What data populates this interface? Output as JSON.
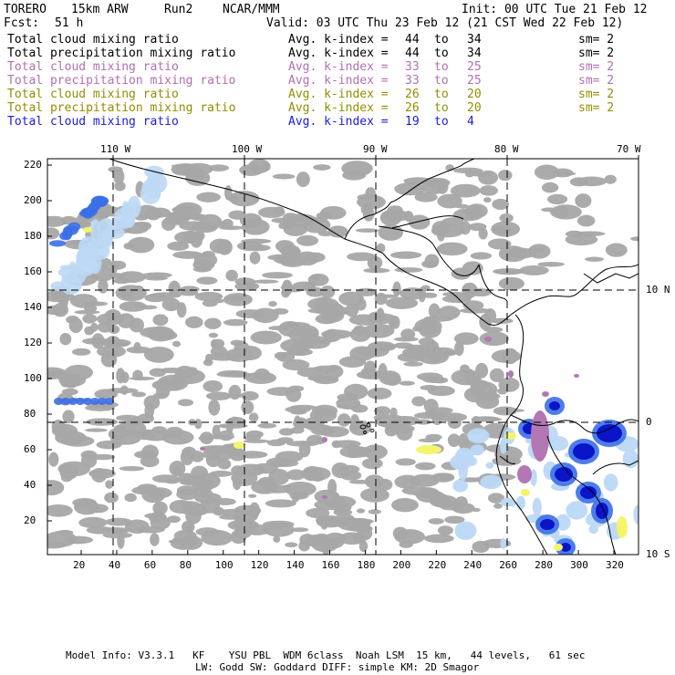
{
  "header": {
    "model": "TORERO",
    "resolution": "15km ARW",
    "run": "Run2",
    "org": "NCAR/MMM",
    "fcst_label": "Fcst:",
    "fcst_value": "51 h",
    "init": "Init: 00 UTC Tue 21 Feb 12",
    "valid": "Valid: 03 UTC Thu 23 Feb 12 (21 CST Wed 22 Feb 12)"
  },
  "legend": [
    {
      "field": "Total cloud mixing ratio",
      "kindex_label": "Avg. k-index =",
      "from": "44",
      "to_word": "to",
      "to": "34",
      "sm": "sm= 2",
      "color": "#000000"
    },
    {
      "field": "Total precipitation mixing ratio",
      "kindex_label": "Avg. k-index =",
      "from": "44",
      "to_word": "to",
      "to": "34",
      "sm": "sm= 2",
      "color": "#000000"
    },
    {
      "field": "Total cloud mixing ratio",
      "kindex_label": "Avg. k-index =",
      "from": "33",
      "to_word": "to",
      "to": "25",
      "sm": "sm= 2",
      "color": "#b36fb3"
    },
    {
      "field": "Total precipitation mixing ratio",
      "kindex_label": "Avg. k-index =",
      "from": "33",
      "to_word": "to",
      "to": "25",
      "sm": "sm= 2",
      "color": "#b36fb3"
    },
    {
      "field": "Total cloud mixing ratio",
      "kindex_label": "Avg. k-index =",
      "from": "26",
      "to_word": "to",
      "to": "20",
      "sm": "sm= 2",
      "color": "#8f8f00"
    },
    {
      "field": "Total precipitation mixing ratio",
      "kindex_label": "Avg. k-index =",
      "from": "26",
      "to_word": "to",
      "to": "20",
      "sm": "sm= 2",
      "color": "#8f8f00"
    },
    {
      "field": "Total cloud mixing ratio",
      "kindex_label": "Avg. k-index =",
      "from": "19",
      "to_word": "to",
      "to": "4",
      "sm": "",
      "color": "#1a1ae6"
    }
  ],
  "axes": {
    "longitude_labels": [
      "110 W",
      "100 W",
      "90 W",
      "80 W",
      "70 W"
    ],
    "latitude_labels": [
      "10 N",
      "0",
      "10 S"
    ],
    "y_ticks": [
      "220",
      "200",
      "180",
      "160",
      "140",
      "120",
      "100",
      "80",
      "60",
      "40",
      "20"
    ],
    "x_ticks": [
      "20",
      "40",
      "60",
      "80",
      "100",
      "120",
      "140",
      "160",
      "180",
      "200",
      "220",
      "240",
      "260",
      "280",
      "300",
      "320"
    ]
  },
  "footer": {
    "line1": "Model Info: V3.3.1   KF    YSU PBL  WDM 6class  Noah LSM  15 km,   44 levels,   61 sec",
    "line2": "LW: Godd SW: Goddard DIFF: simple KM: 2D Smagor"
  },
  "colors": {
    "cloud_gray": "#a6a6a6",
    "cloud_light_blue": "#bcd8f5",
    "cloud_blue": "#3b6fe8",
    "cloud_dark_blue": "#0a14c8",
    "precip_yellow": "#f5f56a",
    "precip_purple": "#b377b3",
    "coastline": "#000000"
  }
}
